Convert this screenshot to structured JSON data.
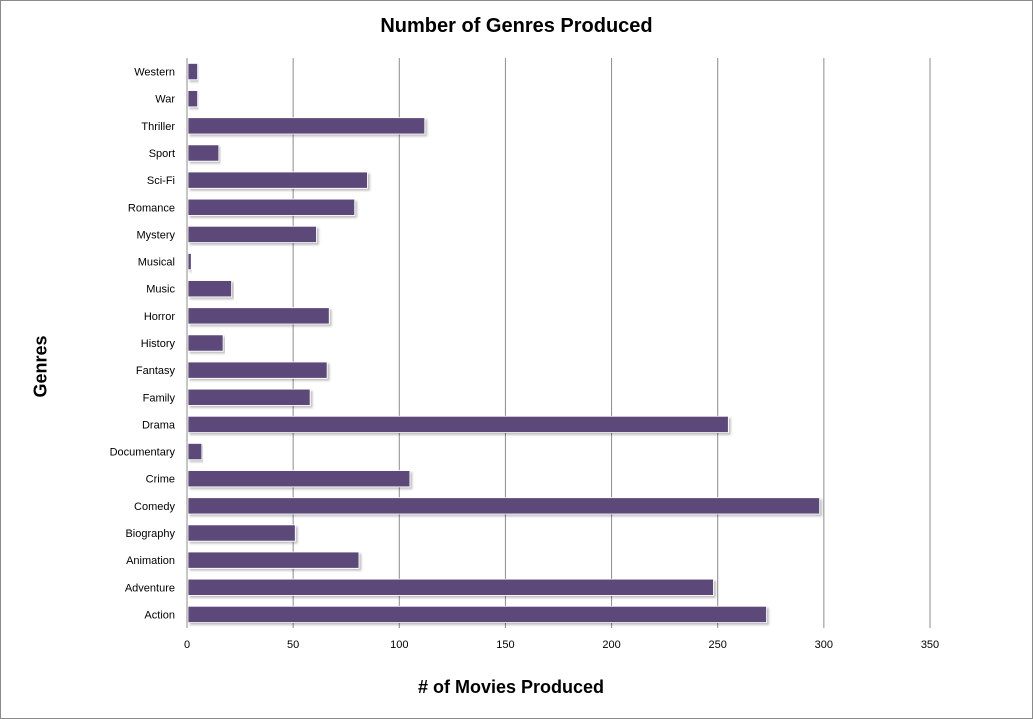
{
  "chart_data": {
    "type": "bar",
    "orientation": "horizontal",
    "title": "Number of Genres Produced",
    "xlabel": "# of Movies Produced",
    "ylabel": "Genres",
    "xlim": [
      0,
      350
    ],
    "xticks": [
      0,
      50,
      100,
      150,
      200,
      250,
      300,
      350
    ],
    "grid": true,
    "legend": "none",
    "bar_color": "#5c4a7a",
    "categories": [
      "Western",
      "War",
      "Thriller",
      "Sport",
      "Sci-Fi",
      "Romance",
      "Mystery",
      "Musical",
      "Music",
      "Horror",
      "History",
      "Fantasy",
      "Family",
      "Drama",
      "Documentary",
      "Crime",
      "Comedy",
      "Biography",
      "Animation",
      "Adventure",
      "Action"
    ],
    "values": [
      5,
      5,
      112,
      15,
      85,
      79,
      61,
      2,
      21,
      67,
      17,
      66,
      58,
      255,
      7,
      105,
      298,
      51,
      81,
      248,
      273
    ]
  }
}
